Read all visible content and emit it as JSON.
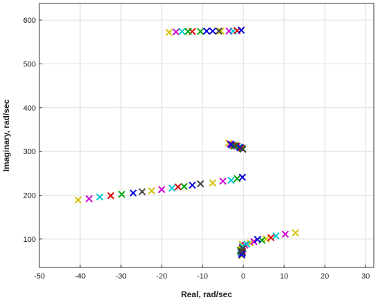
{
  "chart_data": {
    "type": "scatter",
    "title": "",
    "xlabel": "Real, rad/sec",
    "ylabel": "Imaginary, rad/sec",
    "xlim": [
      -50,
      32
    ],
    "ylim": [
      35,
      638
    ],
    "xticks": [
      -50,
      -40,
      -30,
      -20,
      -10,
      0,
      10,
      20,
      30
    ],
    "yticks": [
      100,
      200,
      300,
      400,
      500,
      600
    ],
    "grid": true,
    "marker": "x",
    "colors": [
      "#d4c000",
      "#d000d0",
      "#00c8d0",
      "#e00000",
      "#00a000",
      "#0000e0",
      "#404040"
    ],
    "series": [
      {
        "color_index": 0,
        "points": [
          [
            -18.2,
            572
          ],
          [
            -5.5,
            575
          ],
          [
            -40.5,
            189
          ],
          [
            -22.5,
            210
          ],
          [
            -7.5,
            228
          ],
          [
            -3.6,
            319
          ],
          [
            -2.0,
            314
          ],
          [
            -0.3,
            88
          ],
          [
            1.7,
            91
          ],
          [
            5.6,
            100
          ],
          [
            12.8,
            114
          ],
          [
            -0.3,
            62
          ],
          [
            -0.5,
            76
          ]
        ]
      },
      {
        "color_index": 1,
        "points": [
          [
            -16.5,
            573
          ],
          [
            -3.5,
            575
          ],
          [
            -37.8,
            192
          ],
          [
            -20.0,
            213
          ],
          [
            -5.0,
            232
          ],
          [
            -3.2,
            317
          ],
          [
            -1.5,
            312
          ],
          [
            0.4,
            86
          ],
          [
            2.6,
            94
          ],
          [
            10.3,
            111
          ],
          [
            -0.4,
            65
          ],
          [
            -0.3,
            80
          ]
        ]
      },
      {
        "color_index": 2,
        "points": [
          [
            -15.0,
            574
          ],
          [
            -2.5,
            575
          ],
          [
            -35.2,
            196
          ],
          [
            -17.5,
            216
          ],
          [
            -3.0,
            234
          ],
          [
            -2.8,
            315
          ],
          [
            -1.0,
            310
          ],
          [
            0.9,
            88
          ],
          [
            8.0,
            107
          ],
          [
            -0.6,
            69
          ],
          [
            -0.2,
            83
          ]
        ]
      },
      {
        "color_index": 3,
        "points": [
          [
            -12.5,
            574
          ],
          [
            -1.5,
            576
          ],
          [
            -32.5,
            199
          ],
          [
            -16.0,
            219
          ],
          [
            -2.5,
            314
          ],
          [
            -0.5,
            308
          ],
          [
            6.8,
            103
          ],
          [
            -0.2,
            72
          ]
        ]
      },
      {
        "color_index": 4,
        "points": [
          [
            -13.5,
            574
          ],
          [
            -10.5,
            574
          ],
          [
            -29.8,
            202
          ],
          [
            -14.5,
            220
          ],
          [
            -1.5,
            238
          ],
          [
            -2.2,
            312
          ],
          [
            -0.2,
            306
          ],
          [
            4.6,
            97
          ],
          [
            -0.7,
            74
          ]
        ]
      },
      {
        "color_index": 5,
        "points": [
          [
            -9.0,
            575
          ],
          [
            -7.5,
            575
          ],
          [
            -0.5,
            577
          ],
          [
            -27.0,
            205
          ],
          [
            -12.5,
            223
          ],
          [
            -0.2,
            241
          ],
          [
            -3.0,
            316
          ],
          [
            -0.8,
            309
          ],
          [
            3.5,
            99
          ],
          [
            -0.4,
            64
          ],
          [
            -0.2,
            68
          ]
        ]
      },
      {
        "color_index": 6,
        "points": [
          [
            -6.0,
            575
          ],
          [
            -24.8,
            208
          ],
          [
            -10.5,
            226
          ],
          [
            -1.8,
            313
          ],
          [
            -0.1,
            305
          ],
          [
            -0.6,
            71
          ],
          [
            -0.1,
            78
          ]
        ]
      }
    ]
  }
}
